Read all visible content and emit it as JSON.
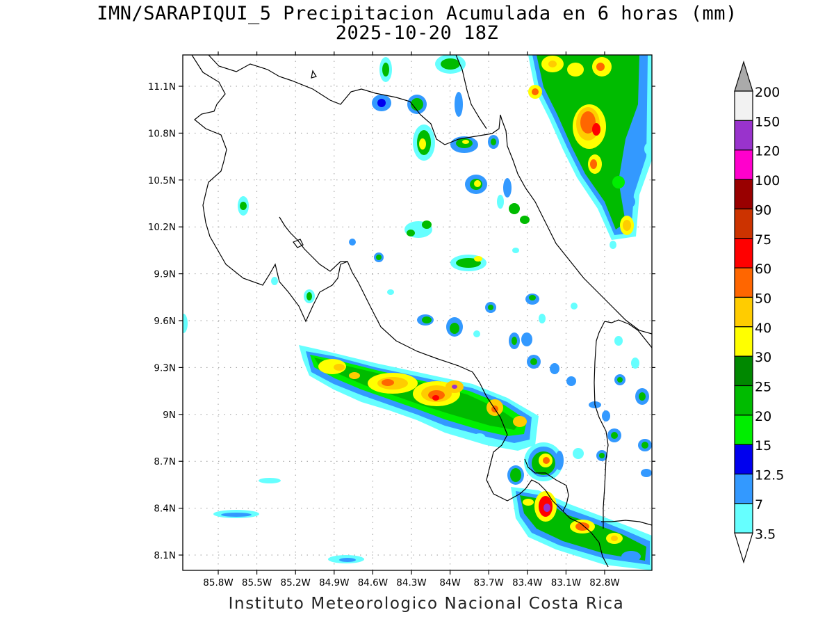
{
  "title": {
    "line1": "IMN/SARAPIQUI_5 Precipitacion Acumulada en 6 horas (mm)",
    "line2": "2025-10-20 18Z"
  },
  "map": {
    "lon_range": [
      -86.0,
      -83.0
    ],
    "lat_range": [
      8.0,
      11.3
    ],
    "lon_ticks": [
      -85.8,
      -85.5,
      -85.2,
      -84.9,
      -84.6,
      -84.3,
      -84.0,
      -83.7,
      -83.4,
      -83.1,
      -82.8
    ],
    "lon_labels": [
      "85.8W",
      "85.5W",
      "85.2W",
      "84.9W",
      "84.6W",
      "84.3W",
      "84W",
      "83.7W",
      "83.4W",
      "83.1W",
      "82.8W"
    ],
    "lat_ticks": [
      8.1,
      8.4,
      8.7,
      9.0,
      9.3,
      9.6,
      9.9,
      10.2,
      10.5,
      10.8,
      11.1
    ],
    "lat_labels": [
      "8.1N",
      "8.4N",
      "8.7N",
      "9N",
      "9.3N",
      "9.6N",
      "9.9N",
      "10.2N",
      "10.5N",
      "10.8N",
      "11.1N"
    ],
    "gridlines": "dotted",
    "coastline_color": "#000000"
  },
  "colorbar": {
    "labels": [
      "3.5",
      "7",
      "12.5",
      "15",
      "20",
      "25",
      "30",
      "40",
      "50",
      "60",
      "75",
      "90",
      "100",
      "120",
      "150",
      "200"
    ],
    "colors": [
      "#66ffff",
      "#3399ff",
      "#0000ee",
      "#00ee00",
      "#00bb00",
      "#008800",
      "#ffff00",
      "#ffcc00",
      "#ff6600",
      "#ff0000",
      "#cc3300",
      "#990000",
      "#ff00cc",
      "#9933cc",
      "#f2f2f2",
      "#aaaaaa"
    ]
  },
  "credit": "Instituto Meteorologico Nacional Costa Rica"
}
